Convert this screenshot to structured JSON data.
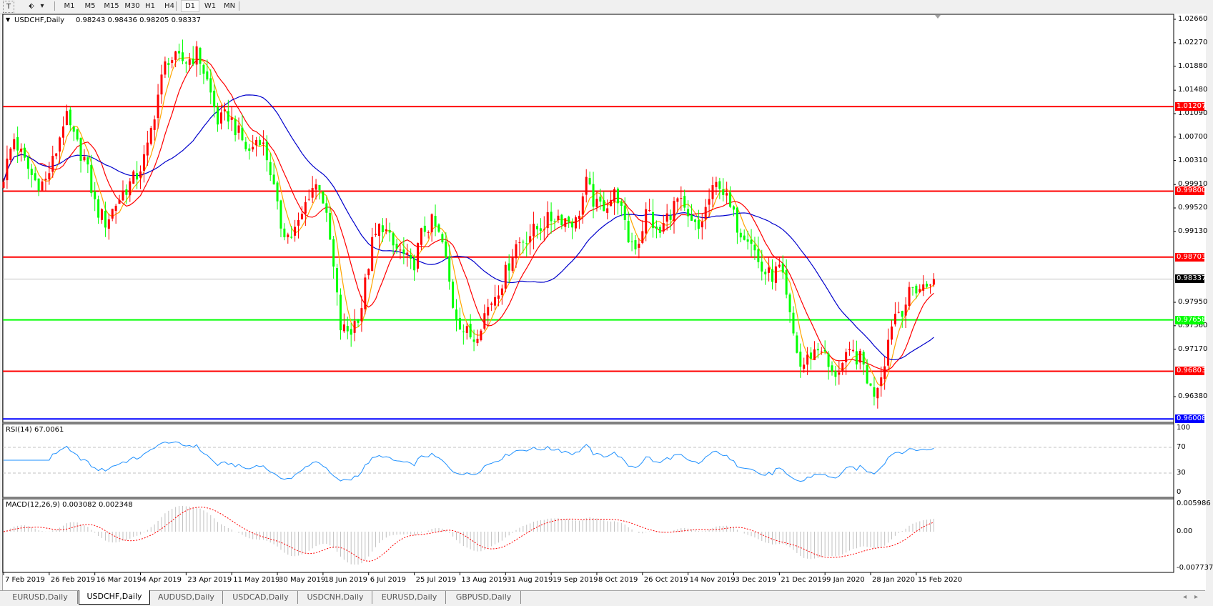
{
  "toolbar": {
    "tools": [
      {
        "icon": "text-tool-icon",
        "glyph": "T"
      },
      {
        "icon": "arrows-tool-icon",
        "glyph": "⬖"
      }
    ],
    "dropdown_glyph": "▾",
    "timeframes": [
      "M1",
      "M5",
      "M15",
      "M30",
      "H1",
      "H4",
      "D1",
      "W1",
      "MN"
    ],
    "active_timeframe": "D1"
  },
  "chart_header": {
    "collapse_glyph": "▼",
    "symbol": "USDCHF,Daily",
    "ohlc": "0.98243 0.98436 0.98205 0.98337"
  },
  "colors": {
    "bull_candle": "#ff0000",
    "bear_candle": "#00ff00",
    "ma_fast": "#ffa500",
    "ma_mid": "#ff0000",
    "ma_slow": "#0000cc",
    "rsi_line": "#1e90ff",
    "macd_histogram": "#c0c0c0",
    "macd_signal": "#ff0000"
  },
  "rsi": {
    "label": "RSI(14) 67.0061",
    "axis_labels": [
      "100",
      "70",
      "30",
      "0"
    ],
    "levels": [
      70,
      30
    ]
  },
  "macd": {
    "label": "MACD(12,26,9) 0.003082 0.002348",
    "axis_labels": [
      "0.005986",
      "0.00",
      "-0.007737"
    ]
  },
  "tabs": [
    {
      "label": "EURUSD,Daily"
    },
    {
      "label": "USDCHF,Daily",
      "active": true
    },
    {
      "label": "AUDUSD,Daily"
    },
    {
      "label": "USDCAD,Daily"
    },
    {
      "label": "USDCNH,Daily"
    },
    {
      "label": "EURUSD,Daily"
    },
    {
      "label": "GBPUSD,Daily"
    }
  ],
  "scroll": {
    "left_glyph": "◂",
    "right_glyph": "▸"
  },
  "chart_data": {
    "type": "candlestick",
    "title": "USDCHF,Daily",
    "y_ticks": [
      "1.02660",
      "1.02270",
      "1.01880",
      "1.01480",
      "1.01090",
      "1.00700",
      "1.00310",
      "0.99910",
      "0.99520",
      "0.99130",
      "0.97950",
      "0.97560",
      "0.97170",
      "0.96380"
    ],
    "ylim": [
      0.9593,
      1.027
    ],
    "x_ticks": [
      "7 Feb 2019",
      "26 Feb 2019",
      "16 Mar 2019",
      "4 Apr 2019",
      "23 Apr 2019",
      "11 May 2019",
      "30 May 2019",
      "18 Jun 2019",
      "6 Jul 2019",
      "25 Jul 2019",
      "13 Aug 2019",
      "31 Aug 2019",
      "19 Sep 2019",
      "8 Oct 2019",
      "26 Oct 2019",
      "14 Nov 2019",
      "3 Dec 2019",
      "21 Dec 2019",
      "9 Jan 2020",
      "28 Jan 2020",
      "15 Feb 2020"
    ],
    "horizontal_levels": [
      {
        "value": "1.01207",
        "color": "#ff0000"
      },
      {
        "value": "0.99800",
        "color": "#ff0000"
      },
      {
        "value": "0.98703",
        "color": "#ff0000"
      },
      {
        "value": "0.97658",
        "color": "#00ff00"
      },
      {
        "value": "0.96803",
        "color": "#ff0000"
      },
      {
        "value": "0.96008",
        "color": "#0000ff"
      }
    ],
    "current_price": {
      "value": "0.98337",
      "color": "#000000"
    },
    "last_bar": {
      "open": 0.98243,
      "high": 0.98436,
      "low": 0.98205,
      "close": 0.98337
    },
    "close_waypoints": [
      1.0005,
      1.0069,
      1.003,
      0.9998,
      0.9992,
      1.0037,
      1.0107,
      1.0062,
      1.003,
      0.9953,
      0.9928,
      0.996,
      0.9985,
      1.0005,
      1.0043,
      1.0133,
      1.0203,
      1.0197,
      1.0197,
      1.021,
      1.0158,
      1.0094,
      1.0107,
      1.0075,
      1.0043,
      1.0075,
      1.0024,
      0.9928,
      0.9902,
      0.9928,
      0.9985,
      0.9992,
      0.9889,
      0.9748,
      0.9748,
      0.9787,
      0.9889,
      0.9928,
      0.9889,
      0.9876,
      0.9851,
      0.9915,
      0.9928,
      0.9889,
      0.9787,
      0.9748,
      0.9735,
      0.9774,
      0.9806,
      0.9838,
      0.9889,
      0.9902,
      0.9915,
      0.9928,
      0.994,
      0.9934,
      0.9928,
      0.9992,
      0.9953,
      0.996,
      0.9979,
      0.9902,
      0.9889,
      0.9953,
      0.9902,
      0.994,
      0.9966,
      0.9928,
      0.9915,
      0.9966,
      0.9998,
      0.9953,
      0.9915,
      0.9908,
      0.9851,
      0.9838,
      0.9851,
      0.9761,
      0.9684,
      0.971,
      0.9722,
      0.9671,
      0.969,
      0.971,
      0.9697,
      0.9639,
      0.9684,
      0.9774,
      0.9787,
      0.9819,
      0.9819,
      0.98337
    ]
  }
}
